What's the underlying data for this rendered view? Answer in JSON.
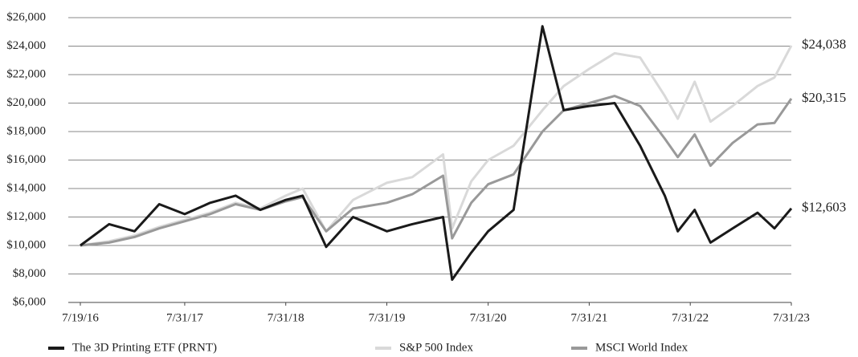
{
  "chart_data": {
    "type": "line",
    "x": [
      "7/19/16",
      "10/31/16",
      "1/31/17",
      "4/30/17",
      "7/31/17",
      "10/31/17",
      "1/31/18",
      "4/30/18",
      "7/31/18",
      "9/30/18",
      "12/24/18",
      "3/31/19",
      "7/31/19",
      "10/31/19",
      "2/19/20",
      "3/23/20",
      "5/31/20",
      "7/31/20",
      "10/31/20",
      "2/12/21",
      "4/30/21",
      "7/31/21",
      "10/31/21",
      "1/31/22",
      "4/30/22",
      "6/16/22",
      "8/16/22",
      "10/12/22",
      "12/31/22",
      "3/31/23",
      "5/31/23",
      "7/31/23"
    ],
    "series": [
      {
        "name": "S&P 500 Index",
        "color": "#d9d9d9",
        "end_label": "$24,038",
        "values": [
          10000,
          10300,
          10700,
          11300,
          11800,
          12300,
          13000,
          12600,
          13500,
          14000,
          11000,
          13200,
          14400,
          14800,
          16400,
          11200,
          14500,
          16000,
          17000,
          19500,
          21200,
          22400,
          23500,
          23200,
          20500,
          18900,
          21500,
          18700,
          19800,
          21200,
          21800,
          24038
        ]
      },
      {
        "name": "MSCI World Index",
        "color": "#999999",
        "end_label": "$20,315",
        "values": [
          10000,
          10200,
          10600,
          11200,
          11700,
          12200,
          12900,
          12500,
          13100,
          13400,
          11000,
          12600,
          13000,
          13600,
          14900,
          10500,
          13000,
          14300,
          15000,
          18000,
          19500,
          20000,
          20500,
          19800,
          17500,
          16200,
          17800,
          15600,
          17200,
          18500,
          18600,
          20315
        ]
      },
      {
        "name": "The 3D Printing ETF (PRNT)",
        "color": "#1a1a1a",
        "end_label": "$12,603",
        "values": [
          10000,
          11500,
          11000,
          12900,
          12200,
          13000,
          13500,
          12500,
          13200,
          13500,
          9900,
          12000,
          11000,
          11500,
          12000,
          7600,
          9500,
          11000,
          12500,
          25400,
          19500,
          19800,
          20000,
          17000,
          13500,
          11000,
          12500,
          10200,
          11200,
          12300,
          11200,
          12603
        ]
      }
    ],
    "xlim": [
      "7/19/16",
      "7/31/23"
    ],
    "xticks": [
      "7/19/16",
      "7/31/17",
      "7/31/18",
      "7/31/19",
      "7/31/20",
      "7/31/21",
      "7/31/22",
      "7/31/23"
    ],
    "ylim": [
      6000,
      26000
    ],
    "yticks": [
      {
        "value": 6000,
        "label": "$6,000"
      },
      {
        "value": 8000,
        "label": "$8,000"
      },
      {
        "value": 10000,
        "label": "$10,000"
      },
      {
        "value": 12000,
        "label": "$12,000"
      },
      {
        "value": 14000,
        "label": "$14,000"
      },
      {
        "value": 16000,
        "label": "$16,000"
      },
      {
        "value": 18000,
        "label": "$18,000"
      },
      {
        "value": 20000,
        "label": "$20,000"
      },
      {
        "value": 22000,
        "label": "$22,000"
      },
      {
        "value": 24000,
        "label": "$24,000"
      },
      {
        "value": 26000,
        "label": "$26,000"
      }
    ],
    "grid": true
  }
}
